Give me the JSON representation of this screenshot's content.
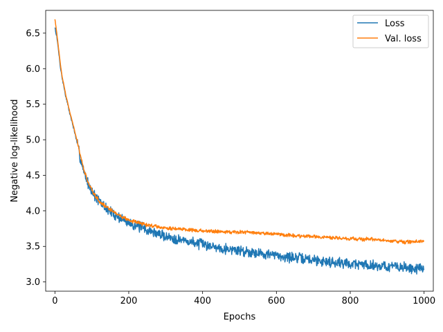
{
  "chart_data": {
    "type": "line",
    "title": "",
    "xlabel": "Epochs",
    "ylabel": "Negative log-likelihood",
    "xlim": [
      -25,
      1025
    ],
    "ylim": [
      2.87,
      6.82
    ],
    "xticks": [
      0,
      200,
      400,
      600,
      800,
      1000
    ],
    "yticks": [
      3.0,
      3.5,
      4.0,
      4.5,
      5.0,
      5.5,
      6.0,
      6.5
    ],
    "xtick_labels": [
      "0",
      "200",
      "400",
      "600",
      "800",
      "1000"
    ],
    "ytick_labels": [
      "3.0",
      "3.5",
      "4.0",
      "4.5",
      "5.0",
      "5.5",
      "6.0",
      "6.5"
    ],
    "grid": false,
    "legend": "top-right",
    "series": [
      {
        "name": "Loss",
        "color": "#1f77b4",
        "noise": 0.06,
        "x": [
          0,
          5,
          10,
          15,
          20,
          30,
          40,
          50,
          60,
          70,
          80,
          90,
          100,
          110,
          120,
          140,
          160,
          180,
          200,
          250,
          300,
          350,
          400,
          450,
          500,
          550,
          600,
          650,
          700,
          750,
          800,
          850,
          900,
          950,
          1000
        ],
        "y": [
          6.58,
          6.45,
          6.25,
          6.02,
          5.86,
          5.6,
          5.38,
          5.18,
          4.96,
          4.72,
          4.53,
          4.38,
          4.28,
          4.2,
          4.13,
          4.03,
          3.95,
          3.89,
          3.84,
          3.73,
          3.64,
          3.58,
          3.53,
          3.48,
          3.44,
          3.41,
          3.37,
          3.34,
          3.31,
          3.28,
          3.26,
          3.24,
          3.22,
          3.2,
          3.18
        ]
      },
      {
        "name": "Val. loss",
        "color": "#ff7f0e",
        "noise": 0.02,
        "x": [
          0,
          5,
          10,
          15,
          20,
          30,
          40,
          50,
          60,
          70,
          80,
          90,
          100,
          110,
          120,
          140,
          160,
          180,
          200,
          250,
          300,
          350,
          400,
          450,
          500,
          550,
          600,
          650,
          700,
          750,
          800,
          850,
          900,
          950,
          1000
        ],
        "y": [
          6.7,
          6.5,
          6.28,
          6.05,
          5.88,
          5.62,
          5.4,
          5.2,
          4.98,
          4.75,
          4.55,
          4.4,
          4.29,
          4.21,
          4.14,
          4.05,
          3.98,
          3.92,
          3.87,
          3.8,
          3.76,
          3.74,
          3.72,
          3.71,
          3.7,
          3.69,
          3.67,
          3.65,
          3.64,
          3.62,
          3.61,
          3.6,
          3.58,
          3.56,
          3.57
        ]
      }
    ]
  }
}
